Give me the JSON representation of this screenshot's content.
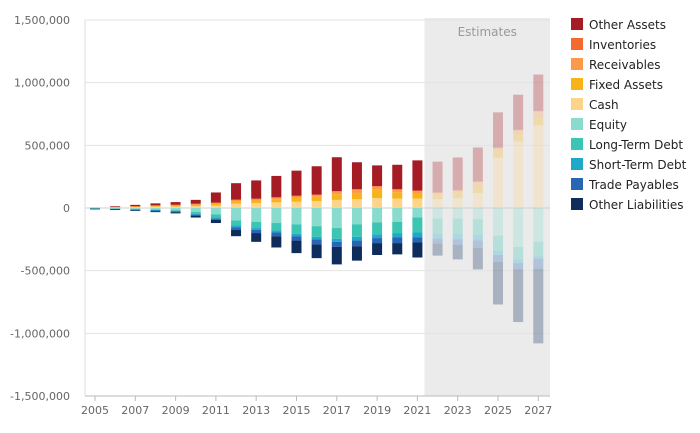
{
  "chart_data": {
    "type": "bar",
    "stacked": true,
    "diverging": true,
    "ylim": [
      -1500000,
      1500000
    ],
    "yticks": [
      "1,500,000",
      "1,000,000",
      "500,000",
      "0",
      "-500,000",
      "-1,000,000",
      "-1,500,000"
    ],
    "ytick_values": [
      1500000,
      1000000,
      500000,
      0,
      -500000,
      -1000000,
      -1500000
    ],
    "categories": [
      "2005",
      "2006",
      "2007",
      "2008",
      "2009",
      "2010",
      "2011",
      "2012",
      "2013",
      "2014",
      "2015",
      "2016",
      "2017",
      "2018",
      "2019",
      "2020",
      "2021",
      "2022",
      "2023",
      "2024",
      "2025",
      "2026",
      "2027"
    ],
    "xtick_labels": [
      "2005",
      "2007",
      "2009",
      "2011",
      "2013",
      "2015",
      "2017",
      "2019",
      "2021",
      "2023",
      "2025",
      "2027"
    ],
    "estimates_label": "Estimates",
    "estimates_from": "2022",
    "grid": true,
    "legend_position": "right",
    "series": [
      {
        "name": "Cash",
        "color": "#fdd58a",
        "side": "positive",
        "values": [
          2000,
          5000,
          7000,
          10000,
          12000,
          15000,
          20000,
          35000,
          40000,
          45000,
          50000,
          55000,
          65000,
          70000,
          80000,
          75000,
          75000,
          70000,
          80000,
          120000,
          400000,
          530000,
          660000
        ]
      },
      {
        "name": "Fixed Assets",
        "color": "#f7b318",
        "side": "positive",
        "values": [
          1000,
          3000,
          5000,
          7000,
          9000,
          12000,
          15000,
          20000,
          20000,
          25000,
          30000,
          35000,
          45000,
          50000,
          65000,
          50000,
          40000,
          40000,
          45000,
          60000,
          60000,
          60000,
          60000
        ]
      },
      {
        "name": "Receivables",
        "color": "#fb9a4a",
        "side": "positive",
        "values": [
          1000,
          2000,
          3000,
          4000,
          5000,
          6000,
          7000,
          10000,
          12000,
          13000,
          15000,
          15000,
          20000,
          25000,
          25000,
          20000,
          20000,
          12000,
          15000,
          30000,
          20000,
          30000,
          50000
        ]
      },
      {
        "name": "Inventories",
        "color": "#f46a2e",
        "side": "positive",
        "values": [
          0,
          0,
          1000,
          1000,
          1000,
          2000,
          2000,
          3000,
          3000,
          3000,
          3000,
          3000,
          5000,
          5000,
          5000,
          5000,
          5000,
          3000,
          3000,
          3000,
          3000,
          4000,
          5000
        ]
      },
      {
        "name": "Other Assets",
        "color": "#a51c24",
        "side": "positive",
        "values": [
          0,
          5000,
          9000,
          15000,
          20000,
          30000,
          80000,
          130000,
          145000,
          170000,
          200000,
          225000,
          270000,
          215000,
          165000,
          195000,
          240000,
          245000,
          260000,
          270000,
          280000,
          280000,
          290000
        ]
      },
      {
        "name": "Equity",
        "color": "#89dccd",
        "side": "negative",
        "values": [
          3000,
          5000,
          8000,
          10000,
          14000,
          30000,
          50000,
          100000,
          110000,
          120000,
          130000,
          145000,
          160000,
          130000,
          115000,
          110000,
          75000,
          85000,
          85000,
          90000,
          220000,
          310000,
          270000
        ]
      },
      {
        "name": "Long-Term Debt",
        "color": "#3cc5b3",
        "side": "negative",
        "values": [
          1000,
          2000,
          4000,
          5000,
          8000,
          15000,
          25000,
          40000,
          50000,
          60000,
          75000,
          85000,
          85000,
          100000,
          95000,
          90000,
          120000,
          120000,
          120000,
          125000,
          120000,
          100000,
          115000
        ]
      },
      {
        "name": "Short-Term Debt",
        "color": "#1fa9c9",
        "side": "negative",
        "values": [
          1000,
          2000,
          3000,
          5000,
          5000,
          8000,
          10000,
          15000,
          15000,
          15000,
          20000,
          20000,
          25000,
          30000,
          30000,
          35000,
          40000,
          40000,
          45000,
          45000,
          35000,
          30000,
          20000
        ]
      },
      {
        "name": "Trade Payables",
        "color": "#2866b5",
        "side": "negative",
        "values": [
          1000,
          2000,
          3000,
          5000,
          6000,
          8000,
          10000,
          20000,
          25000,
          30000,
          35000,
          40000,
          40000,
          45000,
          40000,
          45000,
          40000,
          40000,
          45000,
          60000,
          55000,
          50000,
          80000
        ]
      },
      {
        "name": "Other Liabilities",
        "color": "#0f2d5c",
        "side": "negative",
        "values": [
          1000,
          2000,
          5000,
          8000,
          10000,
          15000,
          25000,
          50000,
          70000,
          90000,
          100000,
          110000,
          140000,
          115000,
          95000,
          90000,
          120000,
          0,
          0,
          0,
          0,
          0,
          0
        ]
      },
      {
        "name": "Other Liabilities (est.)",
        "color": "#0f2d5c",
        "side": "negative",
        "legend": false,
        "values": [
          0,
          0,
          0,
          0,
          0,
          0,
          0,
          0,
          0,
          0,
          0,
          0,
          0,
          0,
          0,
          0,
          0,
          95000,
          115000,
          170000,
          340000,
          420000,
          595000
        ]
      }
    ],
    "legend": [
      "Other Assets",
      "Inventories",
      "Receivables",
      "Fixed Assets",
      "Cash",
      "Equity",
      "Long-Term Debt",
      "Short-Term Debt",
      "Trade Payables",
      "Other Liabilities"
    ]
  }
}
